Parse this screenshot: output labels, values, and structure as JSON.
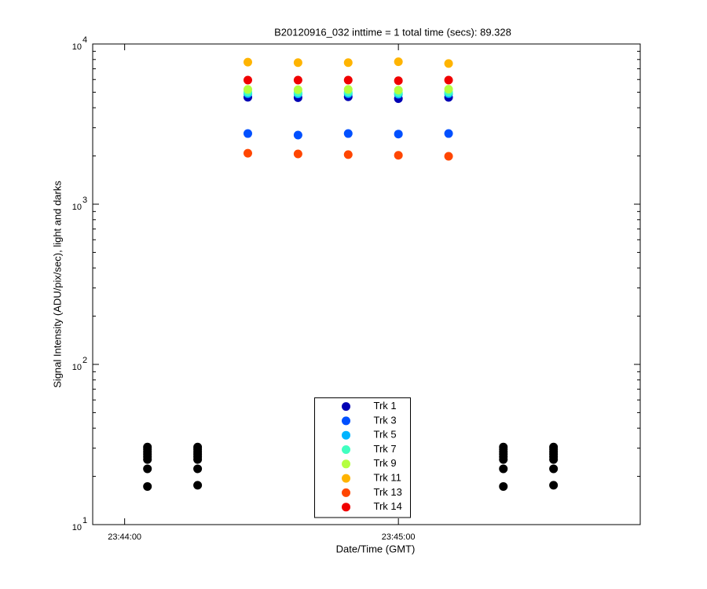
{
  "chart_data": {
    "type": "scatter",
    "title": "B20120916_032 inttime = 1 total time (secs): 89.328",
    "x_label": "Date/Time (GMT)",
    "y_label": "Signal Intensity (ADU/pix/sec), light and darks",
    "log_y": true,
    "xlim": [
      "23:43:53",
      "23:45:53"
    ],
    "xticks": [
      "23:44:00",
      "23:45:00"
    ],
    "ylim": [
      10,
      10000
    ],
    "yticks": [
      {
        "value": 10,
        "label": "10",
        "exponent": "1"
      },
      {
        "value": 100,
        "label": "10",
        "exponent": "2"
      },
      {
        "value": 1000,
        "label": "10",
        "exponent": "3"
      },
      {
        "value": 10000,
        "label": "10",
        "exponent": "4"
      }
    ],
    "yminorticks": [
      20,
      30,
      40,
      50,
      60,
      70,
      80,
      90,
      200,
      300,
      400,
      500,
      600,
      700,
      800,
      900,
      2000,
      3000,
      4000,
      5000,
      6000,
      7000,
      8000,
      9000
    ],
    "x": [
      "23:44:27",
      "23:44:38",
      "23:44:49",
      "23:45:00",
      "23:45:11"
    ],
    "series": [
      {
        "name": "Trk 1",
        "color": "#0000b4",
        "values": [
          4650,
          4620,
          4680,
          4560,
          4640
        ]
      },
      {
        "name": "Trk 3",
        "color": "#0050ff",
        "values": [
          2760,
          2700,
          2760,
          2740,
          2760
        ]
      },
      {
        "name": "Trk 5",
        "color": "#00b4ff",
        "values": [
          4900,
          4880,
          4900,
          4860,
          4900
        ]
      },
      {
        "name": "Trk 7",
        "color": "#40ffc0",
        "values": [
          5000,
          4980,
          5000,
          4960,
          5000
        ]
      },
      {
        "name": "Trk 9",
        "color": "#b4ff40",
        "values": [
          5200,
          5180,
          5200,
          5150,
          5220
        ]
      },
      {
        "name": "Trk 11",
        "color": "#ffb400",
        "values": [
          7700,
          7650,
          7650,
          7750,
          7550
        ]
      },
      {
        "name": "Trk 13",
        "color": "#ff4600",
        "values": [
          2080,
          2060,
          2040,
          2020,
          1990
        ]
      },
      {
        "name": "Trk 14",
        "color": "#f00000",
        "values": [
          5950,
          5950,
          5950,
          5900,
          5950
        ]
      }
    ],
    "darks": {
      "color": "#000000",
      "x": [
        "23:44:05",
        "23:44:16",
        "23:45:23",
        "23:45:34"
      ],
      "values": [
        [
          30.5,
          29.5,
          28.5,
          27.5,
          26.5,
          25.5,
          22.3,
          17.3
        ],
        [
          30.5,
          29.5,
          28.5,
          27.5,
          26.5,
          25.5,
          22.3,
          17.6
        ],
        [
          30.5,
          29.5,
          28.5,
          27.5,
          26.5,
          25.5,
          22.3,
          17.3
        ],
        [
          30.5,
          29.5,
          28.5,
          27.5,
          26.5,
          25.5,
          22.3,
          17.6
        ]
      ]
    },
    "legend": "lower center"
  }
}
